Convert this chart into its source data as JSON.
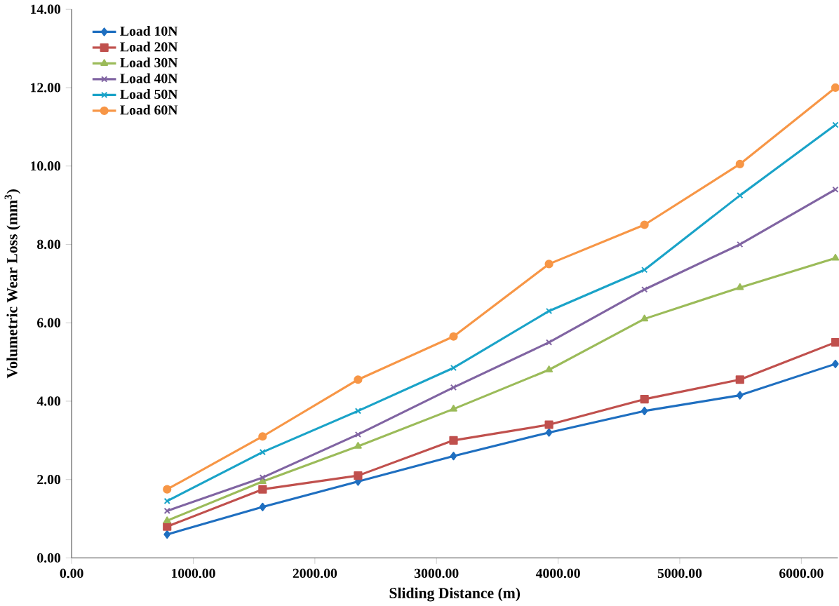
{
  "chart_data": {
    "type": "line",
    "xlabel": "Sliding Distance (m)",
    "ylabel": "Volumetric Wear Loss (mm$^{3}$)",
    "x": [
      785,
      1570,
      2355,
      3140,
      3925,
      4710,
      5495,
      6280
    ],
    "xlim": [
      0,
      6300
    ],
    "ylim": [
      0,
      14
    ],
    "xticks": [
      {
        "value": 0,
        "label": "0.00"
      },
      {
        "value": 1000,
        "label": "1000.00"
      },
      {
        "value": 2000,
        "label": "2000.00"
      },
      {
        "value": 3000,
        "label": "3000.00"
      },
      {
        "value": 4000,
        "label": "4000.00"
      },
      {
        "value": 5000,
        "label": "5000.00"
      },
      {
        "value": 6000,
        "label": "6000.00"
      }
    ],
    "yticks": [
      {
        "value": 0,
        "label": "0.00"
      },
      {
        "value": 2,
        "label": "2.00"
      },
      {
        "value": 4,
        "label": "4.00"
      },
      {
        "value": 6,
        "label": "6.00"
      },
      {
        "value": 8,
        "label": "8.00"
      },
      {
        "value": 10,
        "label": "10.00"
      },
      {
        "value": 12,
        "label": "12.00"
      },
      {
        "value": 14,
        "label": "14.00"
      }
    ],
    "grid": false,
    "legend": "top left",
    "series": [
      {
        "name": "Load 10N",
        "color": "#1f6fc0",
        "marker": "diamond",
        "values": [
          0.6,
          1.3,
          1.95,
          2.6,
          3.2,
          3.75,
          4.15,
          4.95
        ]
      },
      {
        "name": "Load 20N",
        "color": "#c0504d",
        "marker": "square",
        "values": [
          0.8,
          1.75,
          2.1,
          3.0,
          3.4,
          4.05,
          4.55,
          5.5
        ]
      },
      {
        "name": "Load 30N",
        "color": "#9bbb59",
        "marker": "triangle",
        "values": [
          0.95,
          1.95,
          2.85,
          3.8,
          4.8,
          6.1,
          6.9,
          7.65
        ]
      },
      {
        "name": "Load 40N",
        "color": "#8064a2",
        "marker": "cross",
        "values": [
          1.2,
          2.05,
          3.15,
          4.35,
          5.5,
          6.85,
          8.0,
          9.4
        ]
      },
      {
        "name": "Load 50N",
        "color": "#1aa3c8",
        "marker": "cross",
        "values": [
          1.45,
          2.7,
          3.75,
          4.85,
          6.3,
          7.35,
          9.25,
          11.05
        ]
      },
      {
        "name": "Load 60N",
        "color": "#f79646",
        "marker": "circle",
        "values": [
          1.75,
          3.1,
          4.55,
          5.65,
          7.5,
          8.5,
          10.05,
          12.0
        ]
      }
    ]
  }
}
